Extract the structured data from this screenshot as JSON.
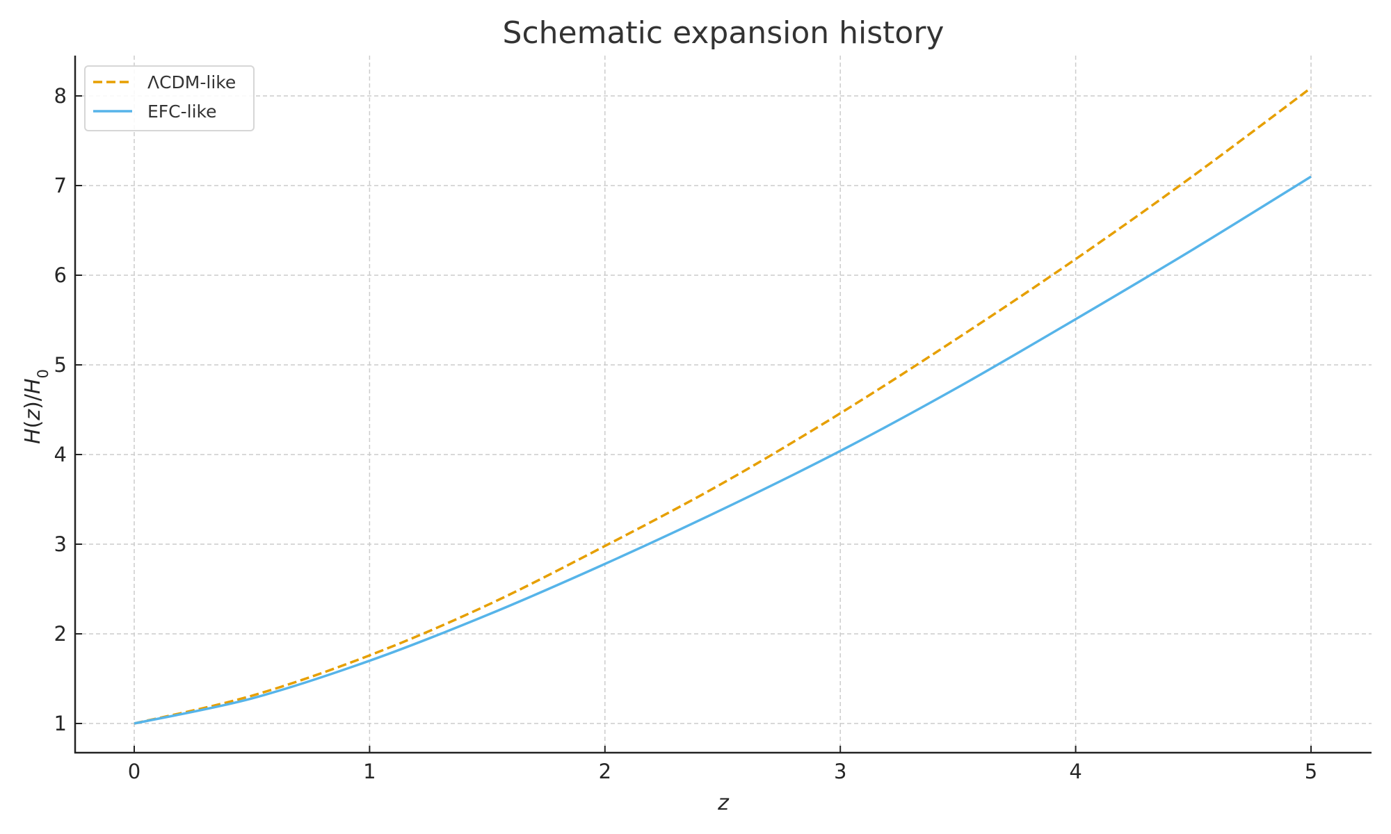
{
  "chart_data": {
    "type": "line",
    "title": "Schematic expansion history",
    "xlabel": "z",
    "ylabel": "H(z)/H0",
    "xlim": [
      -0.25,
      5.25
    ],
    "ylim": [
      0.65,
      8.45
    ],
    "xticks": [
      "0",
      "1",
      "2",
      "3",
      "4",
      "5"
    ],
    "yticks": [
      "1",
      "2",
      "3",
      "4",
      "5",
      "6",
      "7",
      "8"
    ],
    "grid": true,
    "legend_position": "upper left",
    "x": [
      0,
      0.5,
      1,
      1.5,
      2,
      2.5,
      3,
      3.5,
      4,
      4.5,
      5
    ],
    "series": [
      {
        "name": "ΛCDM-like",
        "style": "dashed",
        "color": "#E69F00",
        "values": [
          1.0,
          1.31,
          1.76,
          2.32,
          2.98,
          3.68,
          4.46,
          5.3,
          6.18,
          7.11,
          8.09
        ]
      },
      {
        "name": "EFC-like",
        "style": "solid",
        "color": "#56B4E9",
        "values": [
          1.0,
          1.28,
          1.7,
          2.21,
          2.78,
          3.39,
          4.04,
          4.75,
          5.51,
          6.29,
          7.1
        ]
      }
    ]
  }
}
